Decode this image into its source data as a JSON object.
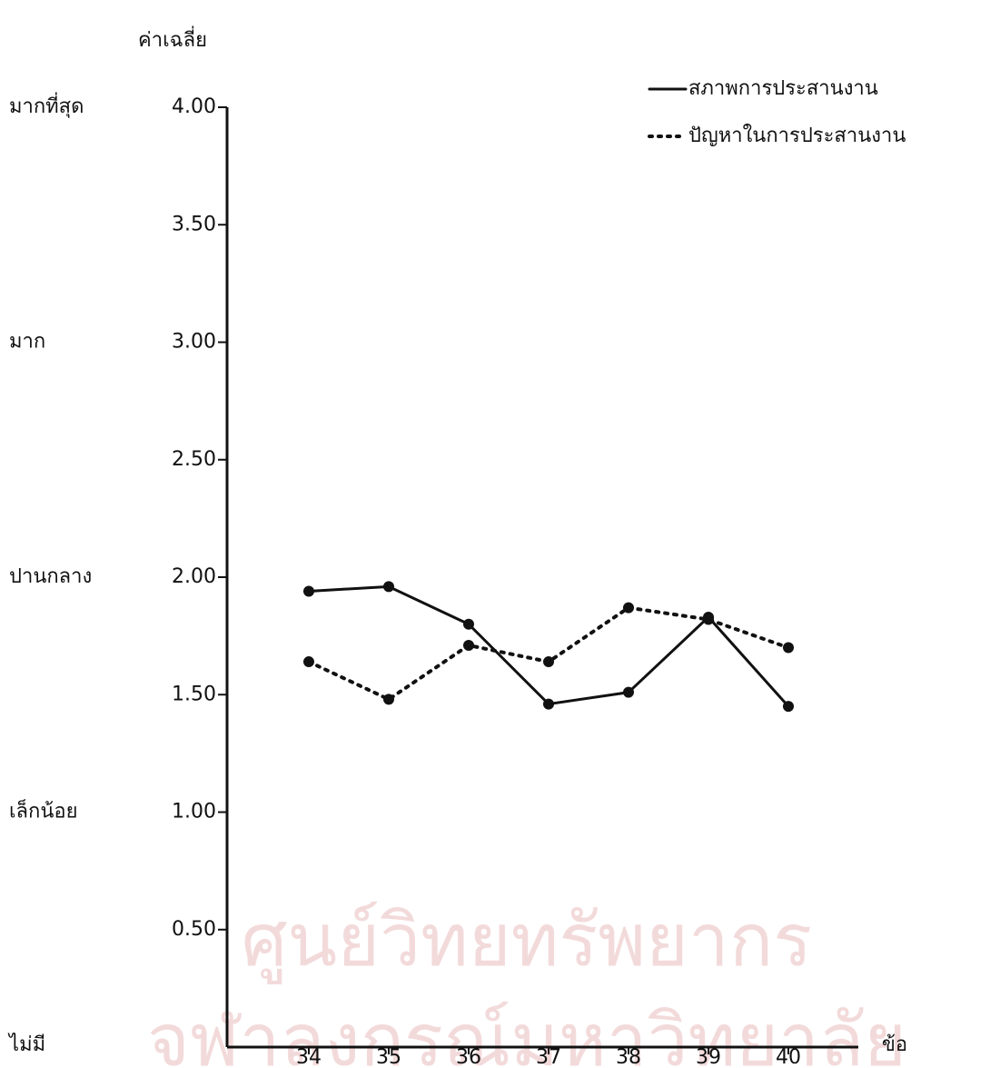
{
  "chart_data": {
    "type": "line",
    "y_axis_label": "ค่าเฉลี่ย",
    "x_axis_label": "ข้อ",
    "categories": [
      "34",
      "35",
      "36",
      "37",
      "38",
      "39",
      "40"
    ],
    "series": [
      {
        "name": "สภาพการประสานงาน",
        "color": "#111111",
        "style": "solid",
        "values": [
          1.94,
          1.96,
          1.8,
          1.46,
          1.51,
          1.83,
          1.45
        ]
      },
      {
        "name": "ปัญหาในการประสานงาน",
        "color": "#111111",
        "style": "dotted",
        "values": [
          1.64,
          1.48,
          1.71,
          1.64,
          1.87,
          1.82,
          1.7
        ]
      }
    ],
    "ylim": [
      0,
      4
    ],
    "yticks": [
      {
        "value": 0.5,
        "label": "0.50"
      },
      {
        "value": 1,
        "label": "1.00"
      },
      {
        "value": 1.5,
        "label": "1.50"
      },
      {
        "value": 2,
        "label": "2.00"
      },
      {
        "value": 2.5,
        "label": "2.50"
      },
      {
        "value": 3,
        "label": "3.00"
      },
      {
        "value": 3.5,
        "label": "3.50"
      },
      {
        "value": 4,
        "label": "4.00"
      }
    ],
    "y_level_labels": [
      {
        "value": 4,
        "label": "มากที่สุด"
      },
      {
        "value": 3,
        "label": "มาก"
      },
      {
        "value": 2,
        "label": "ปานกลาง"
      },
      {
        "value": 1,
        "label": "เล็กน้อย"
      },
      {
        "value": 0,
        "label": "ไม่มี"
      }
    ],
    "legend": "upper right",
    "watermark": [
      "ศูนย์วิทยทรัพยากร",
      "จุฬาลงกรณ์มหาวิทยาลัย"
    ]
  }
}
